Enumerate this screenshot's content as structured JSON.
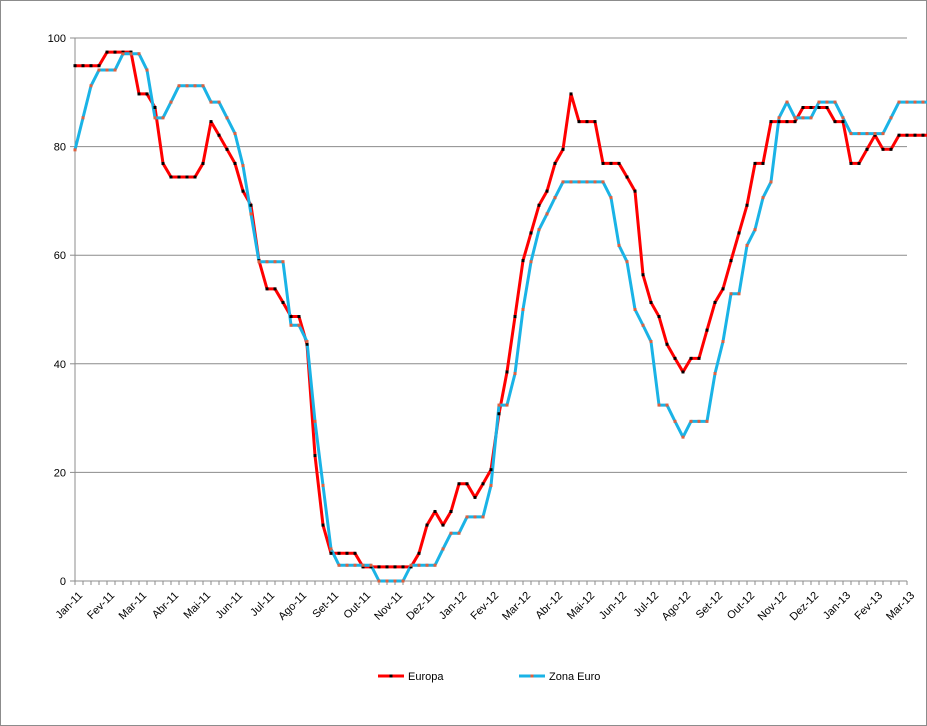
{
  "chart_data": {
    "type": "line",
    "title": "",
    "xlabel": "",
    "ylabel": "",
    "ylim": [
      0,
      100
    ],
    "yticks": [
      0,
      20,
      40,
      60,
      80,
      100
    ],
    "grid": true,
    "legend": "bottom",
    "x_tick_labels": [
      "Jan-11",
      "Fev-11",
      "Mar-11",
      "Abr-11",
      "Mai-11",
      "Jun-11",
      "Jul-11",
      "Ago-11",
      "Set-11",
      "Out-11",
      "Nov-11",
      "Dez-11",
      "Jan-12",
      "Fev-12",
      "Mar-12",
      "Abr-12",
      "Mai-12",
      "Jun-12",
      "Jul-12",
      "Ago-12",
      "Set-12",
      "Out-12",
      "Nov-12",
      "Dez-12",
      "Jan-13",
      "Fev-13",
      "Mar-13"
    ],
    "points_per_tick": 4,
    "series": [
      {
        "name": "Europa",
        "color": "#ff0000",
        "marker_color": "#000000",
        "values": [
          94.9,
          94.9,
          94.9,
          94.9,
          97.4,
          97.4,
          97.4,
          97.4,
          89.7,
          89.7,
          87.2,
          76.9,
          74.4,
          74.4,
          74.4,
          74.4,
          76.9,
          84.6,
          82.1,
          79.5,
          76.9,
          71.8,
          69.2,
          59.0,
          53.8,
          53.8,
          51.3,
          48.7,
          48.7,
          43.6,
          23.1,
          10.3,
          5.1,
          5.1,
          5.1,
          5.1,
          2.6,
          2.6,
          2.6,
          2.6,
          2.6,
          2.6,
          2.6,
          5.1,
          10.3,
          12.8,
          10.3,
          12.8,
          17.9,
          17.9,
          15.4,
          17.9,
          20.5,
          30.8,
          38.5,
          48.7,
          59.0,
          64.1,
          69.2,
          71.8,
          76.9,
          79.5,
          89.7,
          84.6,
          84.6,
          84.6,
          76.9,
          76.9,
          76.9,
          74.4,
          71.8,
          56.4,
          51.3,
          48.7,
          43.6,
          41.0,
          38.5,
          41.0,
          41.0,
          46.2,
          51.3,
          53.8,
          59.0,
          64.1,
          69.2,
          76.9,
          76.9,
          84.6,
          84.6,
          84.6,
          84.6,
          87.2,
          87.2,
          87.2,
          87.2,
          84.6,
          84.6,
          76.9,
          76.9,
          79.5,
          82.1,
          79.5,
          79.5,
          82.1,
          82.1,
          82.1,
          82.1,
          82.1,
          82.1,
          82.1,
          82.1,
          82.1,
          82.1,
          82.1,
          79.5
        ]
      },
      {
        "name": "Zona Euro",
        "color": "#1ab3e6",
        "marker_color": "#e0603e",
        "values": [
          79.4,
          85.3,
          91.2,
          94.1,
          94.1,
          94.1,
          97.1,
          97.1,
          97.1,
          94.1,
          85.3,
          85.3,
          88.2,
          91.2,
          91.2,
          91.2,
          91.2,
          88.2,
          88.2,
          85.3,
          82.4,
          76.5,
          67.6,
          58.8,
          58.8,
          58.8,
          58.8,
          47.1,
          47.1,
          44.1,
          29.4,
          17.6,
          5.9,
          2.9,
          2.9,
          2.9,
          2.9,
          2.9,
          0.0,
          0.0,
          0.0,
          0.0,
          2.9,
          2.9,
          2.9,
          2.9,
          5.9,
          8.8,
          8.8,
          11.8,
          11.8,
          11.8,
          17.6,
          32.4,
          32.4,
          38.2,
          50.0,
          58.8,
          64.7,
          67.6,
          70.6,
          73.5,
          73.5,
          73.5,
          73.5,
          73.5,
          73.5,
          70.6,
          61.8,
          58.8,
          50.0,
          47.1,
          44.1,
          32.4,
          32.4,
          29.4,
          26.5,
          29.4,
          29.4,
          29.4,
          38.2,
          44.1,
          52.9,
          52.9,
          61.8,
          64.7,
          70.6,
          73.5,
          85.3,
          88.2,
          85.3,
          85.3,
          85.3,
          88.2,
          88.2,
          88.2,
          85.3,
          82.4,
          82.4,
          82.4,
          82.4,
          82.4,
          85.3,
          88.2,
          88.2,
          88.2,
          88.2,
          88.2,
          88.2,
          88.2,
          88.2,
          88.2,
          88.2,
          88.2,
          88.2
        ]
      }
    ]
  }
}
